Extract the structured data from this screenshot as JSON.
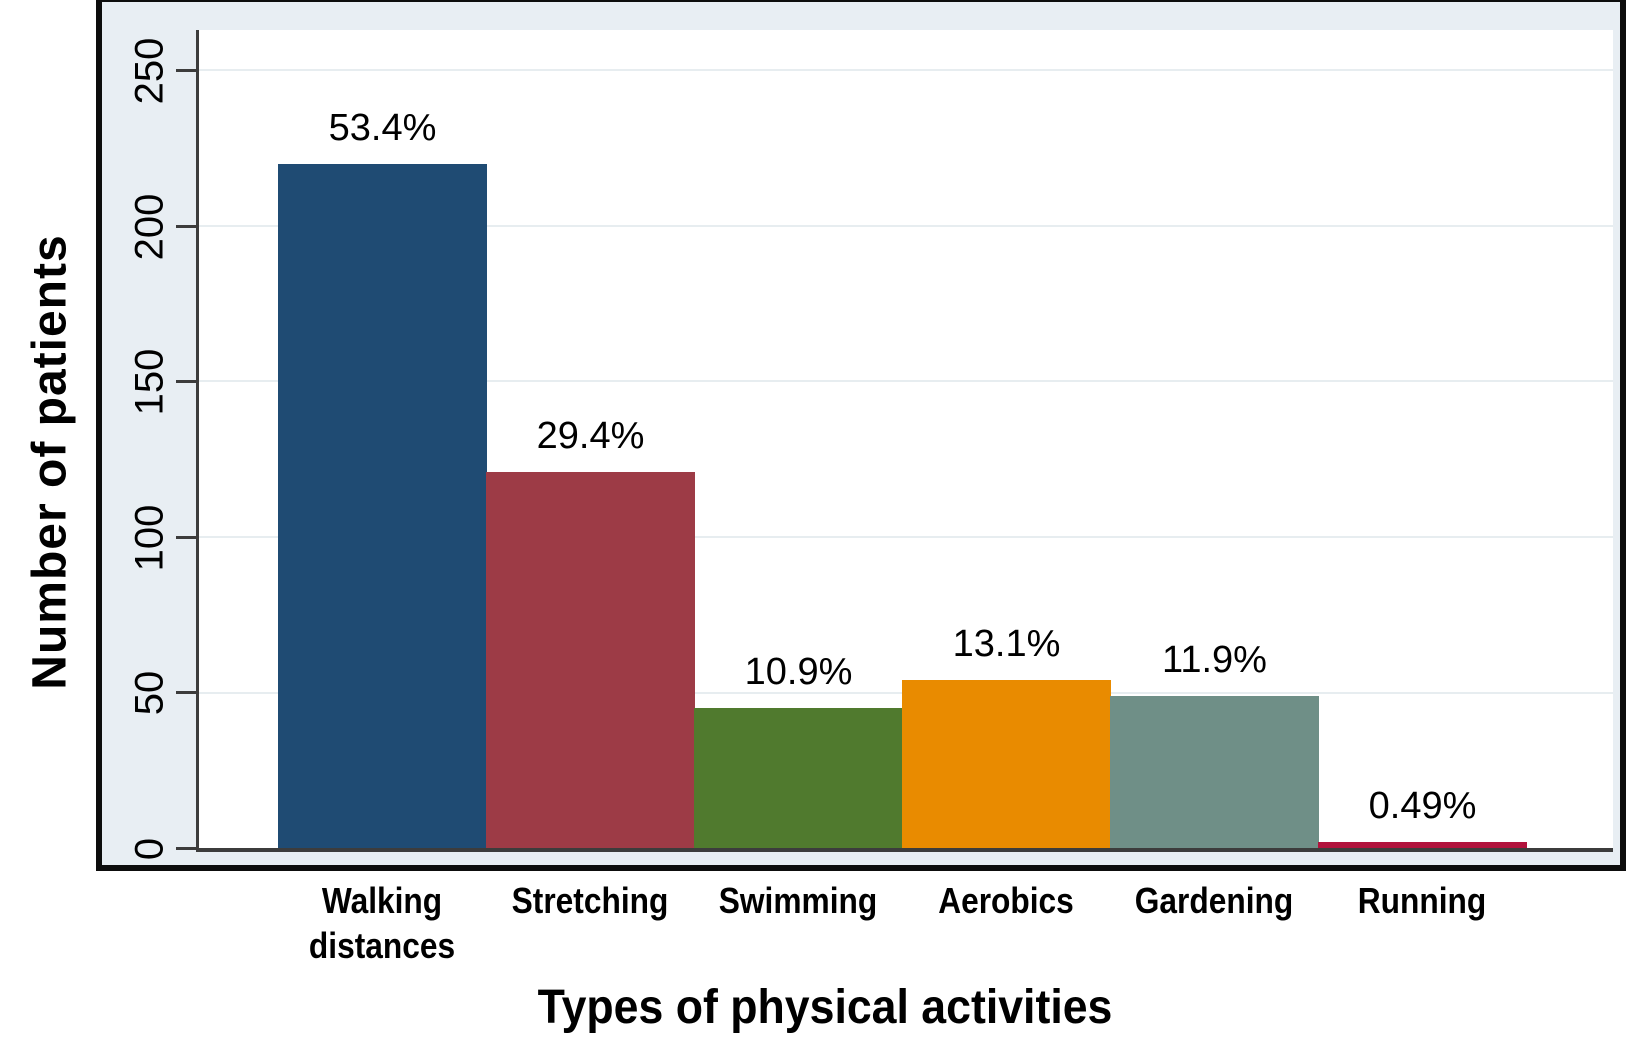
{
  "chart_data": {
    "type": "bar",
    "title": "",
    "xlabel": "Types of physical activities",
    "ylabel": "Number of patients",
    "categories": [
      "Walking distances",
      "Stretching",
      "Swimming",
      "Aerobics",
      "Gardening",
      "Running"
    ],
    "values": [
      220,
      121,
      45,
      54,
      49,
      2
    ],
    "bar_labels": [
      "53.4%",
      "29.4%",
      "10.9%",
      "13.1%",
      "11.9%",
      "0.49%"
    ],
    "bar_colors": [
      "#1f4b73",
      "#9d3b46",
      "#507a2e",
      "#e98b00",
      "#6f8f87",
      "#b1123c"
    ],
    "yticks": [
      0,
      50,
      100,
      150,
      200,
      250
    ],
    "ylim": [
      0,
      263
    ],
    "grid": "horizontal",
    "legend": "none",
    "plot_background": "#ffffff",
    "outer_background": "#e8eef3",
    "gridline_color": "#e7edf0",
    "axis_line_color": "#3c3c3c",
    "frame_border_color": "#0d0d0d"
  }
}
